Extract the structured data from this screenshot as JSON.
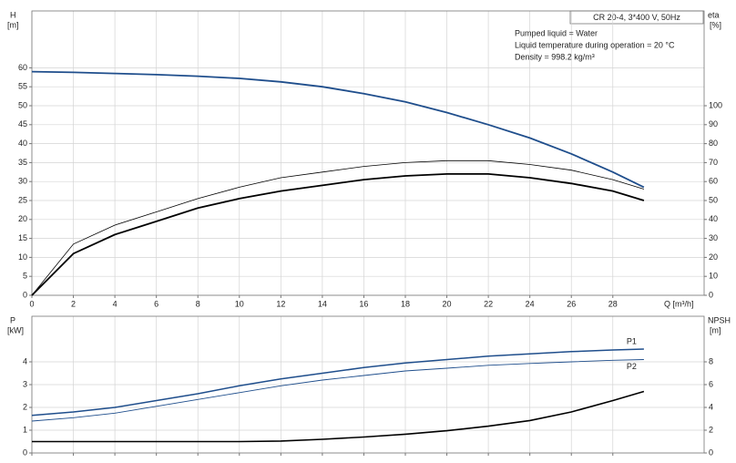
{
  "chart_data": [
    {
      "type": "line",
      "model": "CR 20-4, 3*400 V, 50Hz",
      "annotations": [
        "Pumped liquid = Water",
        "Liquid temperature during operation = 20 °C",
        "Density = 998.2 kg/m³"
      ],
      "y_label": "H",
      "y_unit": "[m]",
      "y2_label": "eta",
      "y2_unit": "[%]",
      "x_label": "Q [m³/h]",
      "x": [
        0,
        2,
        4,
        6,
        8,
        10,
        12,
        14,
        16,
        18,
        20,
        22,
        24,
        26,
        28,
        29.5
      ],
      "series": [
        {
          "color": "#1f4e8c",
          "width": 1.8,
          "values": [
            59,
            58.8,
            58.5,
            58.2,
            57.8,
            57.2,
            56.3,
            55,
            53.2,
            51,
            48.2,
            45,
            41.5,
            37.3,
            32.5,
            28.5
          ]
        },
        {
          "color": "#000000",
          "width": 0.8,
          "axis": "y2",
          "values": [
            0,
            27,
            37,
            44,
            51,
            57,
            62,
            65,
            68,
            70,
            71,
            71,
            69,
            66,
            61,
            56
          ]
        },
        {
          "color": "#000000",
          "width": 1.8,
          "axis": "y2",
          "values": [
            0,
            22,
            32,
            39,
            46,
            51,
            55,
            58,
            61,
            63,
            64,
            64,
            62,
            59,
            55,
            50
          ]
        }
      ],
      "xlim": [
        0,
        32.4
      ],
      "xticks": [
        0,
        2,
        4,
        6,
        8,
        10,
        12,
        14,
        16,
        18,
        20,
        22,
        24,
        26,
        28
      ],
      "show_xtick_labels": true,
      "ylim": [
        0,
        75
      ],
      "yticks": [
        0,
        5,
        10,
        15,
        20,
        25,
        30,
        35,
        40,
        45,
        50,
        55,
        60
      ],
      "y2lim": [
        0,
        150
      ],
      "y2ticks": [
        0,
        10,
        20,
        30,
        40,
        50,
        60,
        70,
        80,
        90,
        100
      ],
      "grid": true
    },
    {
      "type": "line",
      "y_label": "P",
      "y_unit": "[kW]",
      "y2_label": "NPSH",
      "y2_unit": "[m]",
      "x": [
        0,
        2,
        4,
        6,
        8,
        10,
        12,
        14,
        16,
        18,
        20,
        22,
        24,
        26,
        28,
        29.5
      ],
      "series": [
        {
          "name": "P1",
          "color": "#1f4e8c",
          "width": 1.5,
          "label_pos": "above",
          "values": [
            1.65,
            1.8,
            2.0,
            2.3,
            2.6,
            2.95,
            3.25,
            3.5,
            3.75,
            3.95,
            4.1,
            4.25,
            4.35,
            4.45,
            4.52,
            4.56
          ]
        },
        {
          "name": "P2",
          "color": "#1f4e8c",
          "width": 0.9,
          "label_pos": "below",
          "values": [
            1.4,
            1.55,
            1.75,
            2.05,
            2.35,
            2.65,
            2.95,
            3.2,
            3.4,
            3.6,
            3.72,
            3.85,
            3.93,
            4.0,
            4.07,
            4.1
          ]
        },
        {
          "color": "#000000",
          "width": 1.6,
          "axis": "y2",
          "values": [
            1.0,
            1.0,
            1.0,
            1.0,
            1.0,
            1.0,
            1.05,
            1.2,
            1.4,
            1.65,
            1.95,
            2.35,
            2.85,
            3.6,
            4.6,
            5.4
          ]
        }
      ],
      "xlim": [
        0,
        32.4
      ],
      "xticks": [
        0,
        2,
        4,
        6,
        8,
        10,
        12,
        14,
        16,
        18,
        20,
        22,
        24,
        26,
        28
      ],
      "show_xtick_labels": false,
      "ylim": [
        0,
        6
      ],
      "yticks": [
        0,
        1,
        2,
        3,
        4
      ],
      "y2lim": [
        0,
        12
      ],
      "y2ticks": [
        0,
        2,
        4,
        6,
        8
      ],
      "grid": true
    }
  ]
}
